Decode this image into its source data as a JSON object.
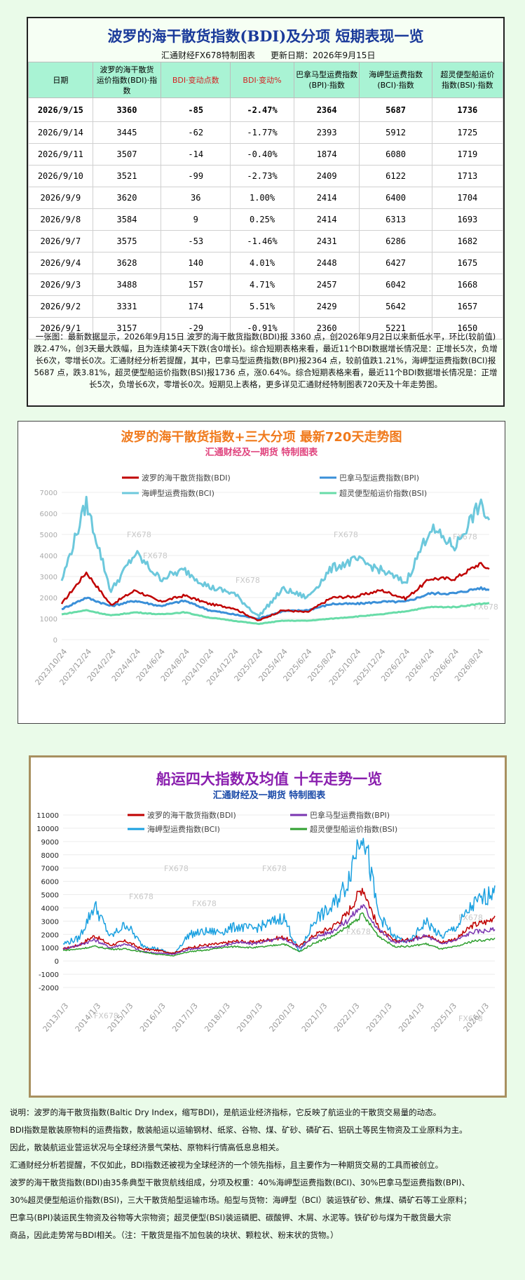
{
  "table_title": "波罗的海干散货指数(BDI)及分项  短期表现一览",
  "table_source": "汇通财经FX678特制图表",
  "table_update": "更新日期：2026年9月15日",
  "columns": [
    "日期",
    "波罗的海干散货\n运价指数(BDI)·指数",
    "BDI·变动点数",
    "BDI·变动%",
    "巴拿马型运费指数\n(BPI)·指数",
    "海岬型运费指数\n(BCI)·指数",
    "超灵便型船运价\n指数(BSI)·指数"
  ],
  "rows": [
    [
      "2026/9/15",
      "3360",
      "-85",
      "-2.47%",
      "2364",
      "5687",
      "1736"
    ],
    [
      "2026/9/14",
      "3445",
      "-62",
      "-1.77%",
      "2393",
      "5912",
      "1725"
    ],
    [
      "2026/9/11",
      "3507",
      "-14",
      "-0.40%",
      "1874",
      "6080",
      "1719"
    ],
    [
      "2026/9/10",
      "3521",
      "-99",
      "-2.73%",
      "2409",
      "6122",
      "1713"
    ],
    [
      "2026/9/9",
      "3620",
      "36",
      "1.00%",
      "2414",
      "6400",
      "1704"
    ],
    [
      "2026/9/8",
      "3584",
      "9",
      "0.25%",
      "2414",
      "6313",
      "1693"
    ],
    [
      "2026/9/7",
      "3575",
      "-53",
      "-1.46%",
      "2431",
      "6286",
      "1682"
    ],
    [
      "2026/9/4",
      "3628",
      "140",
      "4.01%",
      "2448",
      "6427",
      "1675"
    ],
    [
      "2026/9/3",
      "3488",
      "157",
      "4.71%",
      "2457",
      "6042",
      "1668"
    ],
    [
      "2026/9/2",
      "3331",
      "174",
      "5.51%",
      "2429",
      "5642",
      "1657"
    ],
    [
      "2026/9/1",
      "3157",
      "-29",
      "-0.91%",
      "2360",
      "5221",
      "1650"
    ]
  ],
  "summary": "一张图：最新数据显示，2026年9月15日 波罗的海干散货指数(BDI)报 3360 点，创2026年9月2日以来新低水平，环比(较前值)跌2.47%，创3天最大跌幅，且为连续第4天下跌(含0增长)。综合短期表格来看，最近11个BDI数据增长情况是：正增长5次，负增长6次，零增长0次。汇通财经分析若提醒，其中，巴拿马型运费指数(BPI)报2364 点，较前值跌1.21%，海岬型运费指数(BCI)报5687 点，跌3.81%，超灵便型船运价指数(BSI)报1736 点，涨0.64%。综合短期表格来看，最近11个BDI数据增长情况是：正增长5次，负增长6次，零增长0次。短期见上表格，更多详见汇通财经特制图表720天及十年走势图。",
  "chart_data": [
    {
      "type": "line",
      "title": "波罗的海干散货指数+三大分项  最新720天走势图",
      "subtitle": "汇通财经及一期货  特制图表",
      "watermark": "FX678",
      "ylim": [
        0,
        7000
      ],
      "yticks": [
        0,
        1000,
        2000,
        3000,
        4000,
        5000,
        6000,
        7000
      ],
      "x_tick_labels": [
        "2023/10/24",
        "2023/12/24",
        "2024/2/24",
        "2024/4/24",
        "2024/6/24",
        "2024/8/24",
        "2024/10/24",
        "2024/12/24",
        "2025/2/24",
        "2025/4/24",
        "2025/6/24",
        "2025/8/24",
        "2025/10/24",
        "2025/12/24",
        "2026/2/24",
        "2026/4/24",
        "2026/6/24",
        "2026/8/24"
      ],
      "legend_position": "top",
      "x": [
        0,
        1,
        2,
        3,
        4,
        5,
        6,
        7,
        8,
        9,
        10,
        11,
        12,
        13,
        14,
        15,
        16,
        17,
        17.4
      ],
      "series": [
        {
          "name": "波罗的海干散货指数(BDI)",
          "color": "#c00000",
          "values": [
            1700,
            3200,
            1650,
            2350,
            1800,
            2100,
            1700,
            1500,
            900,
            1400,
            1300,
            2000,
            2050,
            2350,
            1950,
            2900,
            2900,
            3600,
            3360
          ]
        },
        {
          "name": "巴拿马型运费指数(BPI)",
          "color": "#3a8fd8",
          "values": [
            1450,
            2000,
            1600,
            1850,
            1600,
            1850,
            1400,
            1200,
            1000,
            1350,
            1400,
            1700,
            1700,
            1800,
            1800,
            2200,
            2200,
            2450,
            2364
          ]
        },
        {
          "name": "海岬型运费指数(BCI)",
          "color": "#6cc8dc",
          "values": [
            2800,
            6500,
            2300,
            4100,
            2900,
            3300,
            2500,
            2200,
            1100,
            2400,
            2000,
            3400,
            3800,
            3300,
            2700,
            5300,
            4400,
            6400,
            5687
          ]
        },
        {
          "name": "超灵便型船运价指数(BSI)",
          "color": "#68dca8",
          "values": [
            1200,
            1400,
            1150,
            1300,
            1200,
            1300,
            1050,
            900,
            750,
            900,
            900,
            1000,
            1100,
            1200,
            1350,
            1550,
            1550,
            1700,
            1736
          ]
        }
      ]
    },
    {
      "type": "line",
      "title": "船运四大指数及均值 十年走势一览",
      "subtitle": "汇通财经及一期货 特制图表",
      "watermark": "FX678",
      "ylim": [
        -2000,
        11000
      ],
      "yticks": [
        -2000,
        -1000,
        0,
        1000,
        2000,
        3000,
        4000,
        5000,
        6000,
        7000,
        8000,
        9000,
        10000,
        11000
      ],
      "x_tick_labels": [
        "2013/1/3",
        "2014/1/3",
        "2015/1/3",
        "2016/1/3",
        "2017/1/3",
        "2018/1/3",
        "2019/1/3",
        "2020/1/3",
        "2021/1/3",
        "2022/1/3",
        "2023/1/3",
        "2024/1/3",
        "2025/1/3",
        "2026/1/3"
      ],
      "legend_position": "top",
      "x": [
        0,
        0.5,
        1,
        1.5,
        2,
        2.5,
        3,
        3.5,
        4,
        4.5,
        5,
        5.5,
        6,
        6.5,
        7,
        7.5,
        8,
        8.5,
        9,
        9.5,
        10,
        10.5,
        11,
        11.5,
        12,
        12.5,
        13,
        13.5,
        13.7
      ],
      "series": [
        {
          "name": "波罗的海干散货指数(BDI)",
          "color": "#c00000",
          "values": [
            900,
            1200,
            1900,
            1200,
            1500,
            900,
            800,
            600,
            1000,
            1200,
            1300,
            1500,
            1400,
            1600,
            1800,
            1100,
            2000,
            2500,
            3500,
            5600,
            2500,
            1500,
            1600,
            2000,
            1400,
            1700,
            2700,
            3000,
            3400
          ]
        },
        {
          "name": "巴拿马型运费指数(BPI)",
          "color": "#7a35b0",
          "values": [
            900,
            1200,
            1600,
            1000,
            1300,
            700,
            600,
            500,
            900,
            1000,
            1100,
            1400,
            1300,
            1500,
            1700,
            1000,
            1800,
            2200,
            3000,
            4200,
            2400,
            1400,
            1500,
            1900,
            1300,
            1600,
            2200,
            2300,
            2364
          ]
        },
        {
          "name": "海岬型运费指数(BCI)",
          "color": "#1aa0e0",
          "values": [
            1300,
            1700,
            4200,
            1800,
            2800,
            1200,
            900,
            500,
            2000,
            2200,
            2200,
            2600,
            2400,
            2800,
            3300,
            600,
            3200,
            3900,
            5800,
            10200,
            3500,
            1800,
            1400,
            3000,
            1800,
            2600,
            4200,
            5000,
            5687
          ]
        },
        {
          "name": "超灵便型船运价指数(BSI)",
          "color": "#30a030",
          "values": [
            800,
            900,
            1100,
            900,
            900,
            700,
            500,
            400,
            700,
            800,
            1000,
            1100,
            1000,
            1100,
            1300,
            700,
            1400,
            1800,
            2500,
            3500,
            1900,
            1100,
            1100,
            1300,
            900,
            1100,
            1500,
            1600,
            1736
          ]
        }
      ]
    }
  ],
  "notes": [
    "说明：波罗的海干散货指数(Baltic Dry Index，缩写BDI)，是航运业经济指标，它反映了航运业的干散货交易量的动态。",
    "BDI指数是散装原物料的运费指数，散装船运以运输钢材、纸浆、谷物、煤、矿砂、磷矿石、铝矾土等民生物资及工业原料为主。",
    "因此，散装航运业营运状况与全球经济景气荣枯、原物料行情高低息息相关。",
    "汇通财经分析若提醒，不仅如此，BDI指数还被视为全球经济的一个领先指标，且主要作为一种期货交易的工具而被创立。",
    "波罗的海干散货指数(BDI)由35条典型干散货航线组成，分项及权重：40%海岬型运费指数(BCI)、30%巴拿马型运费指数(BPI)、",
    "30%超灵便型船运价指数(BSI)，三大干散货船型运输市场。船型与货物：海岬型（BCI）装运铁矿砂、焦煤、磷矿石等工业原料；",
    "巴拿马(BPI)装运民生物资及谷物等大宗物资；超灵便型(BSI)装运磷肥、碳酸钾、木屑、水泥等。铁矿砂与煤为干散货最大宗",
    "商品，因此走势常与BDI相关。（注：干散货是指不加包装的块状、颗粒状、粉末状的货物。）"
  ]
}
